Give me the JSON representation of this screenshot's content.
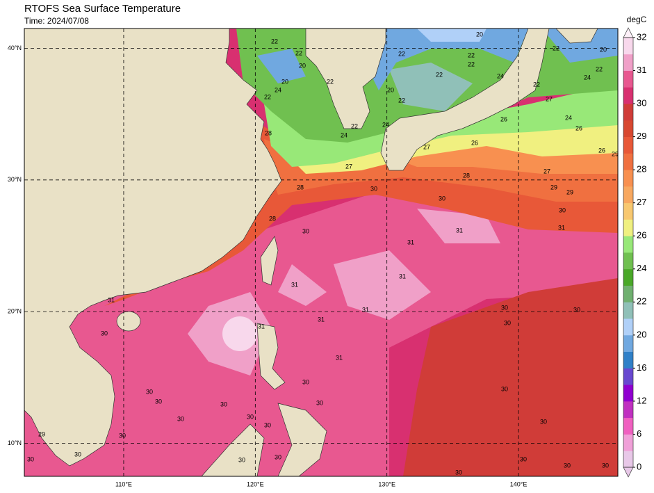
{
  "chart_data": {
    "type": "map",
    "title": "RTOFS Sea Surface Temperature",
    "subtitle": "Time: 2024/07/08",
    "xlim": [
      102.45,
      147.55
    ],
    "ylim": [
      7.5,
      41.5
    ],
    "xticks": [
      {
        "value": 110,
        "label": "110°E"
      },
      {
        "value": 120,
        "label": "120°E"
      },
      {
        "value": 130,
        "label": "130°E"
      },
      {
        "value": 140,
        "label": "140°E"
      }
    ],
    "yticks": [
      {
        "value": 10,
        "label": "10°N"
      },
      {
        "value": 20,
        "label": "20°N"
      },
      {
        "value": 30,
        "label": "30°N"
      },
      {
        "value": 40,
        "label": "40°N"
      }
    ],
    "grid": true,
    "colorbar": {
      "label": "degC",
      "levels": [
        0,
        3,
        6,
        9,
        12,
        14,
        16,
        18,
        20,
        21,
        22,
        23,
        24,
        25,
        26,
        26.5,
        27,
        27.5,
        28,
        28.5,
        29,
        29.5,
        30,
        30.5,
        31,
        31.5,
        32
      ],
      "colors": [
        "#e8c8e8",
        "#f0a0d8",
        "#f060c0",
        "#c030c0",
        "#9000d0",
        "#6848d0",
        "#3080c8",
        "#70a8e0",
        "#b0d0f8",
        "#90c0b8",
        "#70b070",
        "#4aa828",
        "#70c050",
        "#98e878",
        "#f0f080",
        "#f8c870",
        "#f8a860",
        "#f89050",
        "#f07040",
        "#e85838",
        "#d84830",
        "#d03c38",
        "#d83070",
        "#e85890",
        "#f0a0c8",
        "#f8d8ec"
      ],
      "ticks": [
        0,
        6,
        12,
        16,
        20,
        22,
        24,
        26,
        27,
        28,
        29,
        30,
        31,
        32
      ]
    },
    "contour_labels": [
      22,
      22,
      20,
      22,
      20,
      22,
      24,
      22,
      22,
      22,
      22,
      20,
      24,
      22,
      20,
      24,
      22,
      24,
      26,
      26,
      27,
      28,
      27,
      29,
      29,
      30,
      31,
      31,
      31,
      31,
      30,
      30,
      27,
      28,
      28,
      30,
      31,
      31,
      31,
      31,
      30,
      30,
      30,
      30,
      30,
      30,
      30,
      30,
      30,
      30,
      30,
      30,
      30,
      30,
      30,
      30,
      31,
      30,
      30,
      30,
      29,
      30,
      30,
      30,
      30,
      31,
      28,
      24,
      24,
      22,
      22,
      20,
      22,
      27,
      26,
      26,
      29
    ]
  }
}
